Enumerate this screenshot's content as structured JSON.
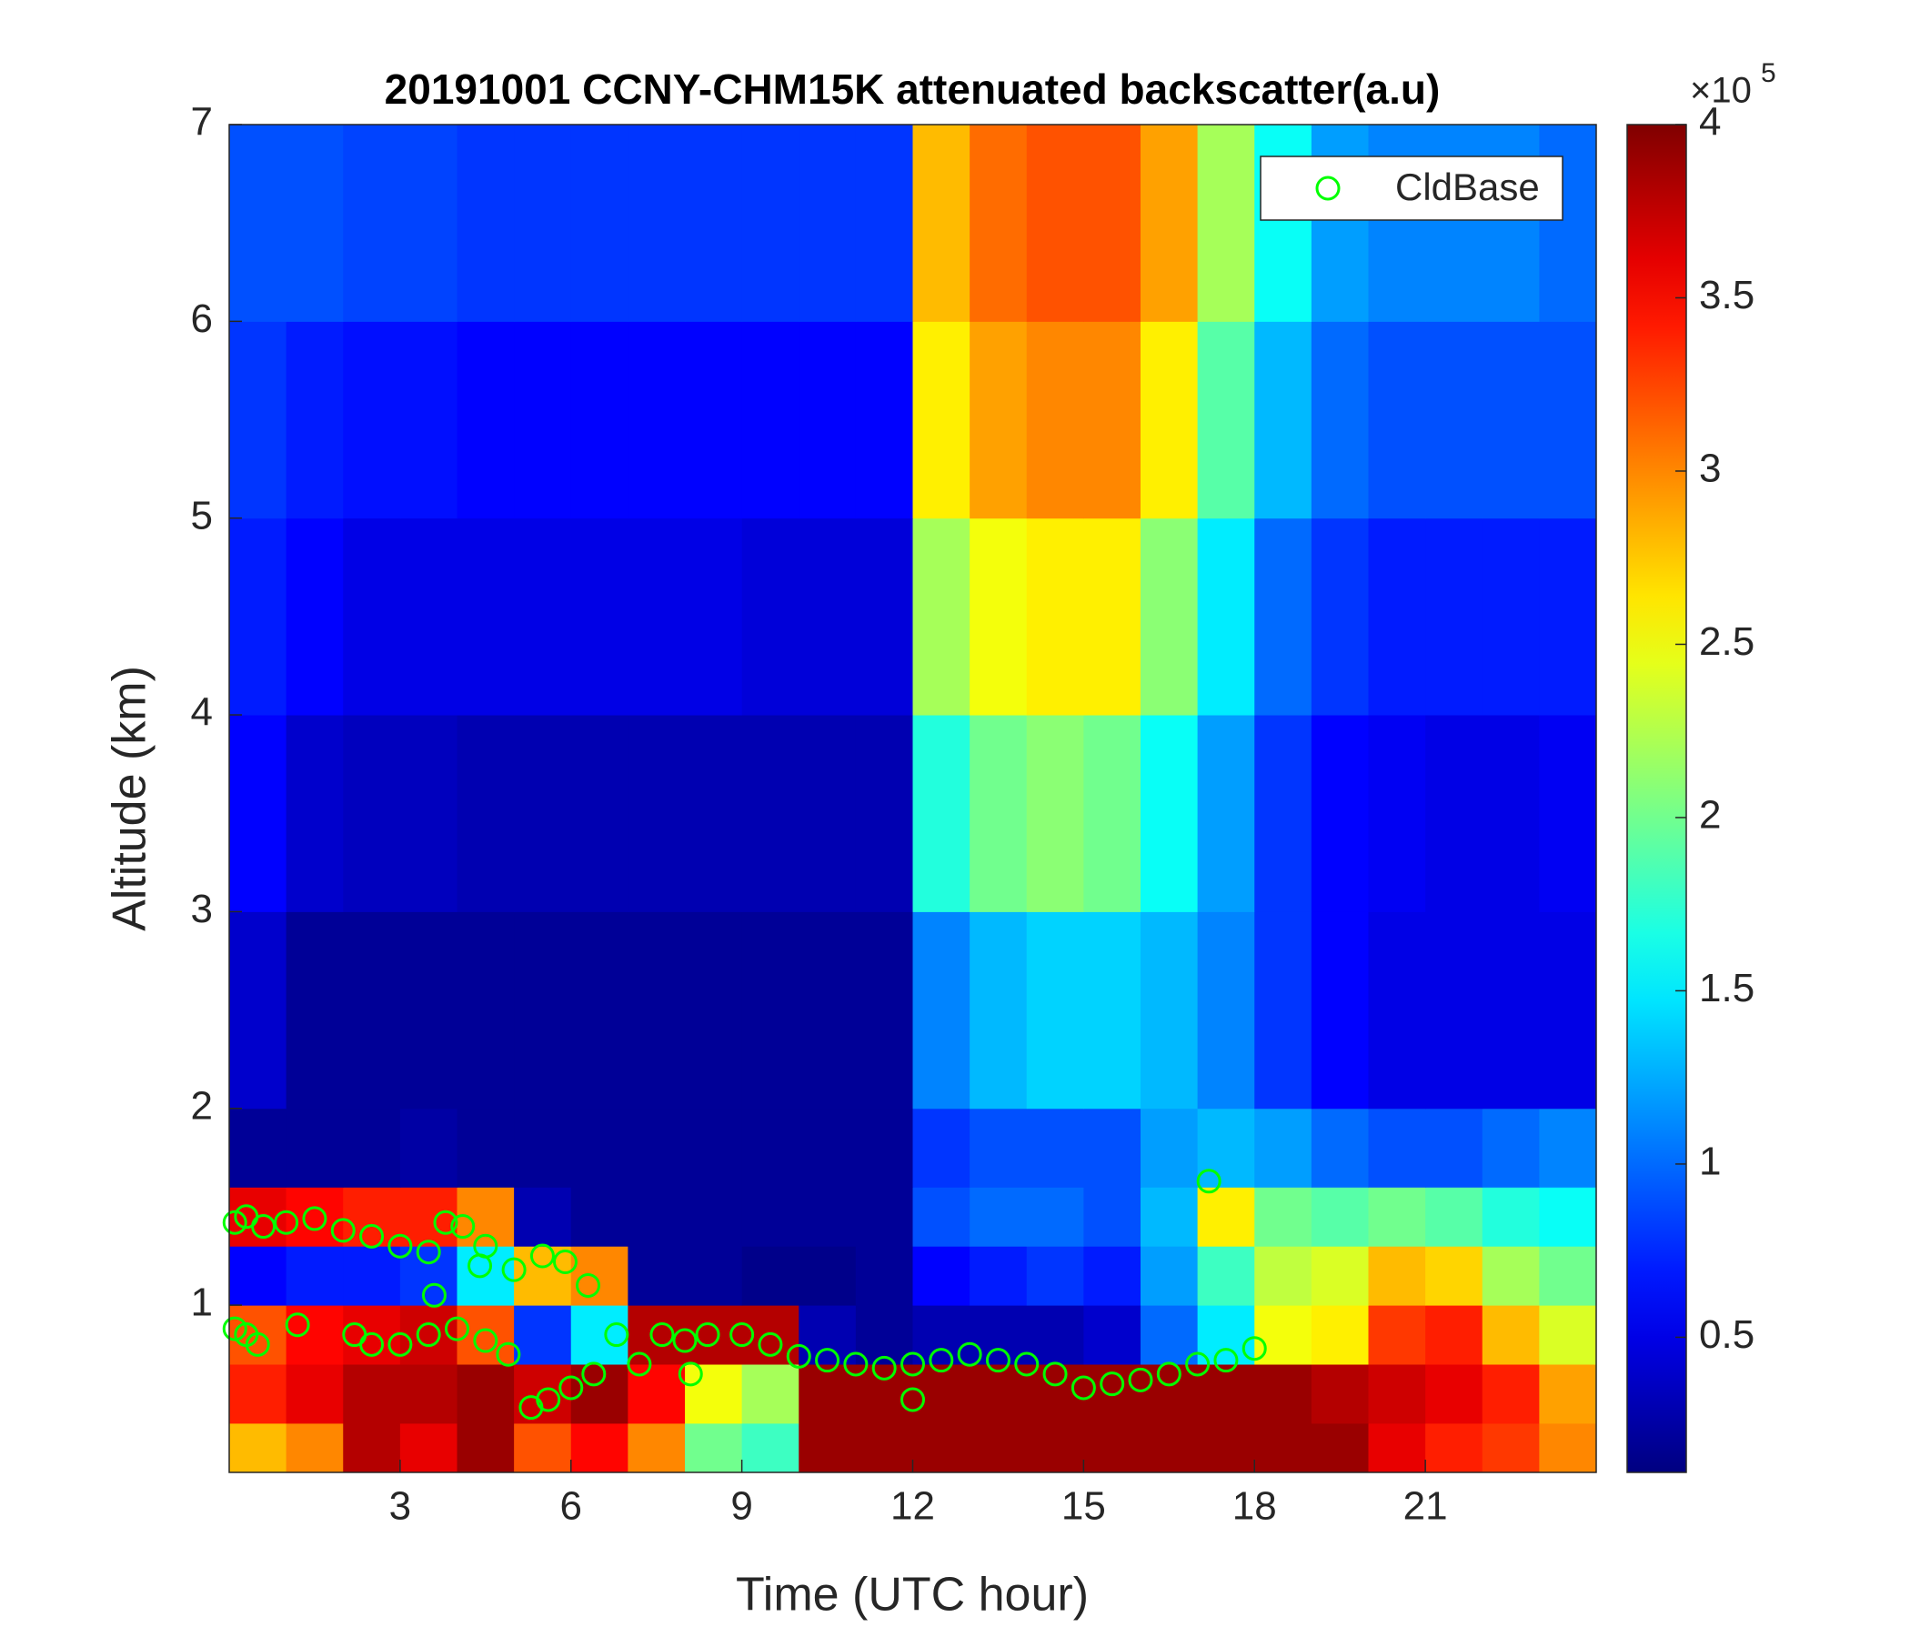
{
  "chart_data": {
    "type": "heatmap",
    "title": "20191001 CCNY-CHM15K attenuated backscatter(a.u)",
    "x_label": "Time (UTC hour)",
    "y_label": "Altitude (km)",
    "xlim": [
      0,
      24
    ],
    "xticks": [
      3,
      6,
      9,
      12,
      15,
      18,
      21
    ],
    "ylim": [
      0.15,
      7
    ],
    "yticks": [
      1,
      2,
      3,
      4,
      5,
      6,
      7
    ],
    "legend_position": "upper-right",
    "heatmap": {
      "x_edges": [
        0,
        1,
        2,
        3,
        4,
        5,
        6,
        7,
        8,
        9,
        10,
        11,
        12,
        13,
        14,
        15,
        16,
        17,
        18,
        19,
        20,
        21,
        22,
        23,
        24
      ],
      "y_edges": [
        0.15,
        0.4,
        0.7,
        1.0,
        1.3,
        1.6,
        2,
        3,
        4,
        5,
        6,
        7
      ],
      "values": [
        [
          2.8,
          3.0,
          3.8,
          3.6,
          3.9,
          3.2,
          3.5,
          3.0,
          2.0,
          1.8,
          3.9,
          3.9,
          3.9,
          3.9,
          3.9,
          3.9,
          3.9,
          3.9,
          3.9,
          3.9,
          3.6,
          3.4,
          3.3,
          3.0
        ],
        [
          3.4,
          3.6,
          3.8,
          3.8,
          3.9,
          3.7,
          3.9,
          3.5,
          2.5,
          2.2,
          3.9,
          3.9,
          3.9,
          3.9,
          3.9,
          3.9,
          3.9,
          3.9,
          3.9,
          3.8,
          3.7,
          3.6,
          3.4,
          2.9
        ],
        [
          3.2,
          3.5,
          3.6,
          3.7,
          3.2,
          0.8,
          1.5,
          3.8,
          3.8,
          3.8,
          0.3,
          0.2,
          0.3,
          0.3,
          0.3,
          0.4,
          1.0,
          1.5,
          2.5,
          2.6,
          3.3,
          3.4,
          2.8,
          2.4
        ],
        [
          0.6,
          0.7,
          0.7,
          0.8,
          1.5,
          2.8,
          3.0,
          0.2,
          0.2,
          0.15,
          0.15,
          0.2,
          0.6,
          0.7,
          0.8,
          0.7,
          1.2,
          1.8,
          2.3,
          2.4,
          2.8,
          2.7,
          2.2,
          2.0
        ],
        [
          3.6,
          3.5,
          3.4,
          3.4,
          3.0,
          0.3,
          0.2,
          0.2,
          0.2,
          0.2,
          0.2,
          0.2,
          0.9,
          1.0,
          1.0,
          0.9,
          1.3,
          2.6,
          2.0,
          1.9,
          2.0,
          1.9,
          1.7,
          1.6
        ],
        [
          0.2,
          0.2,
          0.2,
          0.25,
          0.2,
          0.2,
          0.2,
          0.2,
          0.2,
          0.2,
          0.2,
          0.2,
          0.8,
          0.9,
          0.9,
          0.9,
          1.2,
          1.3,
          1.2,
          1.0,
          0.9,
          0.9,
          1.0,
          1.1
        ],
        [
          0.4,
          0.2,
          0.2,
          0.2,
          0.2,
          0.2,
          0.2,
          0.2,
          0.2,
          0.2,
          0.2,
          0.2,
          1.1,
          1.3,
          1.4,
          1.4,
          1.3,
          1.1,
          0.8,
          0.6,
          0.5,
          0.5,
          0.5,
          0.5
        ],
        [
          0.6,
          0.4,
          0.35,
          0.35,
          0.3,
          0.3,
          0.3,
          0.3,
          0.3,
          0.3,
          0.3,
          0.3,
          1.7,
          2.0,
          2.1,
          2.0,
          1.6,
          1.2,
          0.8,
          0.6,
          0.55,
          0.5,
          0.5,
          0.55
        ],
        [
          0.7,
          0.6,
          0.5,
          0.5,
          0.5,
          0.5,
          0.5,
          0.5,
          0.5,
          0.45,
          0.45,
          0.45,
          2.2,
          2.5,
          2.6,
          2.6,
          2.1,
          1.5,
          1.0,
          0.8,
          0.7,
          0.7,
          0.7,
          0.7
        ],
        [
          0.8,
          0.7,
          0.65,
          0.65,
          0.6,
          0.6,
          0.6,
          0.6,
          0.6,
          0.6,
          0.6,
          0.6,
          2.6,
          2.9,
          3.0,
          3.0,
          2.6,
          1.9,
          1.3,
          1.0,
          0.9,
          0.9,
          0.9,
          0.9
        ],
        [
          0.9,
          0.9,
          0.85,
          0.85,
          0.8,
          0.8,
          0.8,
          0.8,
          0.8,
          0.8,
          0.8,
          0.8,
          2.8,
          3.1,
          3.2,
          3.2,
          2.9,
          2.2,
          1.6,
          1.2,
          1.1,
          1.1,
          1.1,
          1.0
        ]
      ]
    },
    "colorbar": {
      "colormap": "jet",
      "lim": [
        0.11,
        4
      ],
      "ticks": [
        0.5,
        1,
        1.5,
        2,
        2.5,
        3,
        3.5,
        4
      ],
      "multiplier": "×10",
      "exponent": "5"
    },
    "series": [
      {
        "name": "CldBase",
        "color": "#00ff00",
        "x": [
          0.1,
          0.3,
          0.6,
          1,
          1.5,
          2,
          2.5,
          3,
          3.5,
          3.8,
          4.1,
          4.5,
          4.4,
          5,
          5.5,
          5.9,
          6.3,
          0.1,
          0.3,
          0.5,
          1.2,
          2.2,
          2.5,
          3,
          3.5,
          4,
          4.5,
          4.9,
          5.3,
          5.6,
          6,
          6.4,
          6.8,
          7.2,
          7.6,
          8,
          8.4,
          9,
          9.5,
          10,
          10.5,
          11,
          11.5,
          12,
          12.5,
          13,
          13.5,
          14,
          14.5,
          15,
          15.5,
          16,
          16.5,
          17,
          17.5,
          18,
          17.2,
          3.6,
          8.1,
          12
        ],
        "y": [
          1.42,
          1.45,
          1.4,
          1.42,
          1.44,
          1.38,
          1.35,
          1.3,
          1.27,
          1.42,
          1.4,
          1.3,
          1.2,
          1.18,
          1.25,
          1.22,
          1.1,
          0.88,
          0.85,
          0.8,
          0.9,
          0.85,
          0.8,
          0.8,
          0.85,
          0.88,
          0.82,
          0.75,
          0.48,
          0.52,
          0.58,
          0.65,
          0.85,
          0.7,
          0.85,
          0.82,
          0.85,
          0.85,
          0.8,
          0.74,
          0.72,
          0.7,
          0.68,
          0.7,
          0.72,
          0.75,
          0.72,
          0.7,
          0.65,
          0.58,
          0.6,
          0.62,
          0.65,
          0.7,
          0.72,
          0.78,
          1.63,
          1.05,
          0.65,
          0.52
        ]
      }
    ]
  }
}
